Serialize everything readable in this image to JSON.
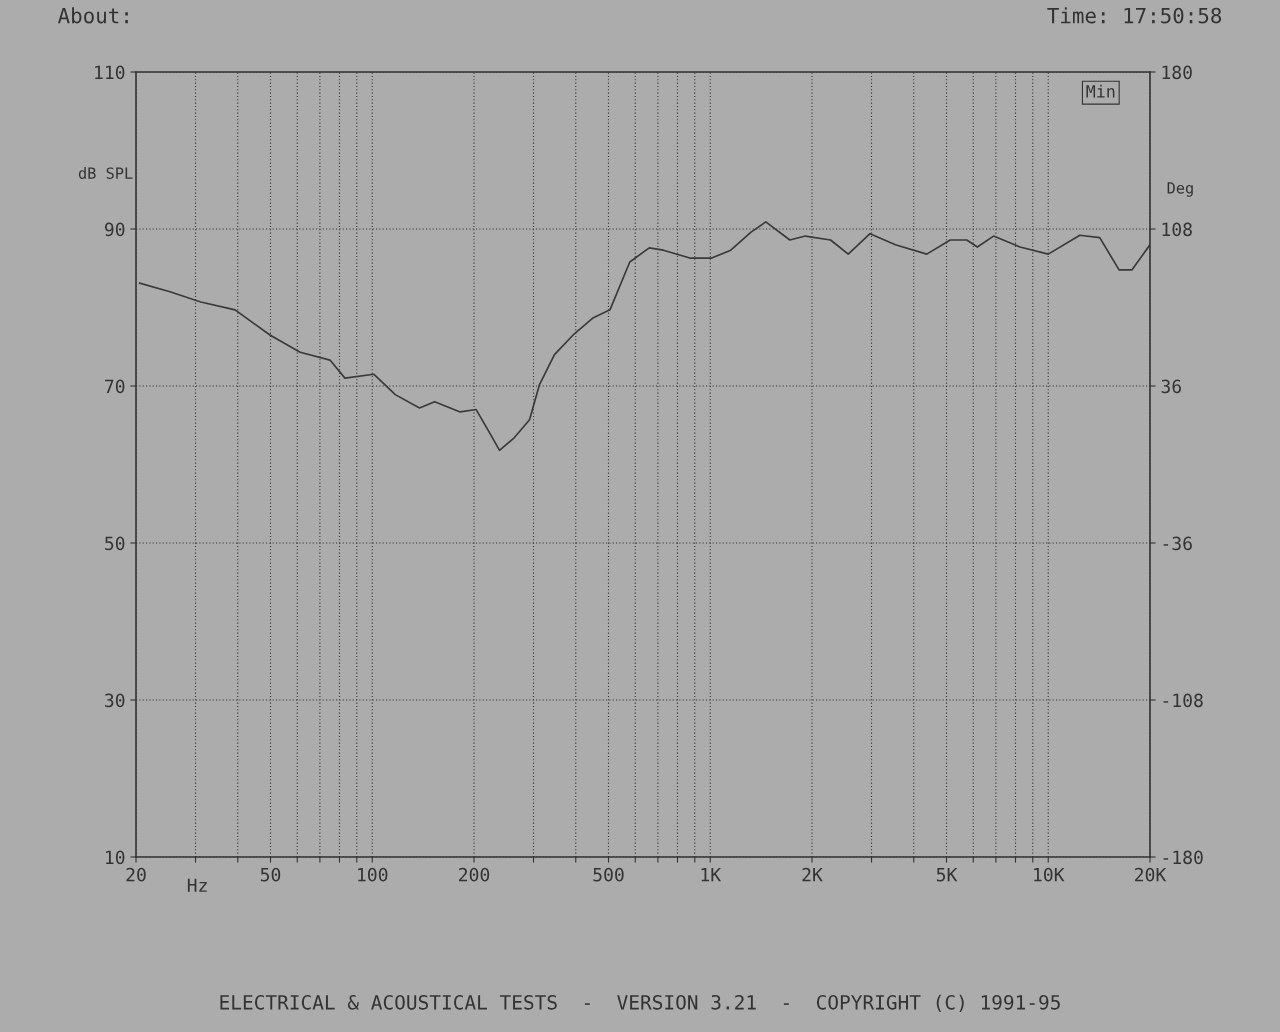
{
  "chart_data": {
    "type": "line",
    "xlabel": "Hz",
    "ylabel": "dB SPL",
    "y2label": "Deg",
    "annotations": [
      "About:",
      "Time: 17:50:58",
      "Min",
      "ELECTRICAL & ACOUSTICAL TESTS  -  VERSION 3.21  -  COPYRIGHT (C) 1991-95"
    ],
    "log": "x",
    "grid": true,
    "line_style": "solid",
    "xlim": [
      20,
      20000
    ],
    "ylim": [
      10,
      110
    ],
    "y2lim": [
      -180,
      180
    ],
    "xticks": [
      {
        "value": 20,
        "label": "20"
      },
      {
        "value": 30,
        "label": null
      },
      {
        "value": 40,
        "label": null
      },
      {
        "value": 50,
        "label": "50"
      },
      {
        "value": 60,
        "label": null
      },
      {
        "value": 70,
        "label": null
      },
      {
        "value": 80,
        "label": null
      },
      {
        "value": 90,
        "label": null
      },
      {
        "value": 100,
        "label": "100"
      },
      {
        "value": 200,
        "label": "200"
      },
      {
        "value": 300,
        "label": null
      },
      {
        "value": 400,
        "label": null
      },
      {
        "value": 500,
        "label": "500"
      },
      {
        "value": 600,
        "label": null
      },
      {
        "value": 700,
        "label": null
      },
      {
        "value": 800,
        "label": null
      },
      {
        "value": 900,
        "label": null
      },
      {
        "value": 1000,
        "label": "1K"
      },
      {
        "value": 2000,
        "label": "2K"
      },
      {
        "value": 3000,
        "label": null
      },
      {
        "value": 4000,
        "label": null
      },
      {
        "value": 5000,
        "label": "5K"
      },
      {
        "value": 6000,
        "label": null
      },
      {
        "value": 7000,
        "label": null
      },
      {
        "value": 8000,
        "label": null
      },
      {
        "value": 9000,
        "label": null
      },
      {
        "value": 10000,
        "label": "10K"
      },
      {
        "value": 20000,
        "label": "20K"
      }
    ],
    "yticks": [
      10,
      30,
      50,
      70,
      90,
      110
    ],
    "y2ticks": [
      -180,
      -108,
      -36,
      36,
      108,
      180
    ],
    "series": [
      {
        "color": "#3a3a3a",
        "x": [
          20.5,
          25.2,
          31.1,
          39.3,
          49.8,
          61.2,
          75,
          83,
          101,
          117,
          138,
          153,
          182,
          203,
          224,
          238,
          263,
          292,
          312,
          346,
          393,
          451,
          505,
          578,
          660,
          727,
          870,
          1010,
          1150,
          1320,
          1460,
          1720,
          1910,
          2270,
          2560,
          2970,
          3530,
          4370,
          5130,
          5740,
          6170,
          6890,
          8250,
          10000,
          12400,
          14200,
          16200,
          17700,
          20000
        ],
        "values": [
          83.1,
          82.0,
          80.7,
          79.7,
          76.5,
          74.3,
          73.3,
          71.0,
          71.5,
          68.9,
          67.2,
          68.0,
          66.7,
          67.0,
          63.8,
          61.8,
          63.4,
          65.7,
          70.1,
          74.0,
          76.5,
          78.7,
          79.7,
          85.8,
          87.6,
          87.3,
          86.3,
          86.3,
          87.3,
          89.6,
          90.9,
          88.6,
          89.1,
          88.6,
          86.8,
          89.4,
          88.0,
          86.8,
          88.6,
          88.6,
          87.7,
          89.1,
          87.7,
          86.8,
          89.2,
          88.9,
          84.8,
          84.8,
          88.0
        ]
      }
    ]
  }
}
